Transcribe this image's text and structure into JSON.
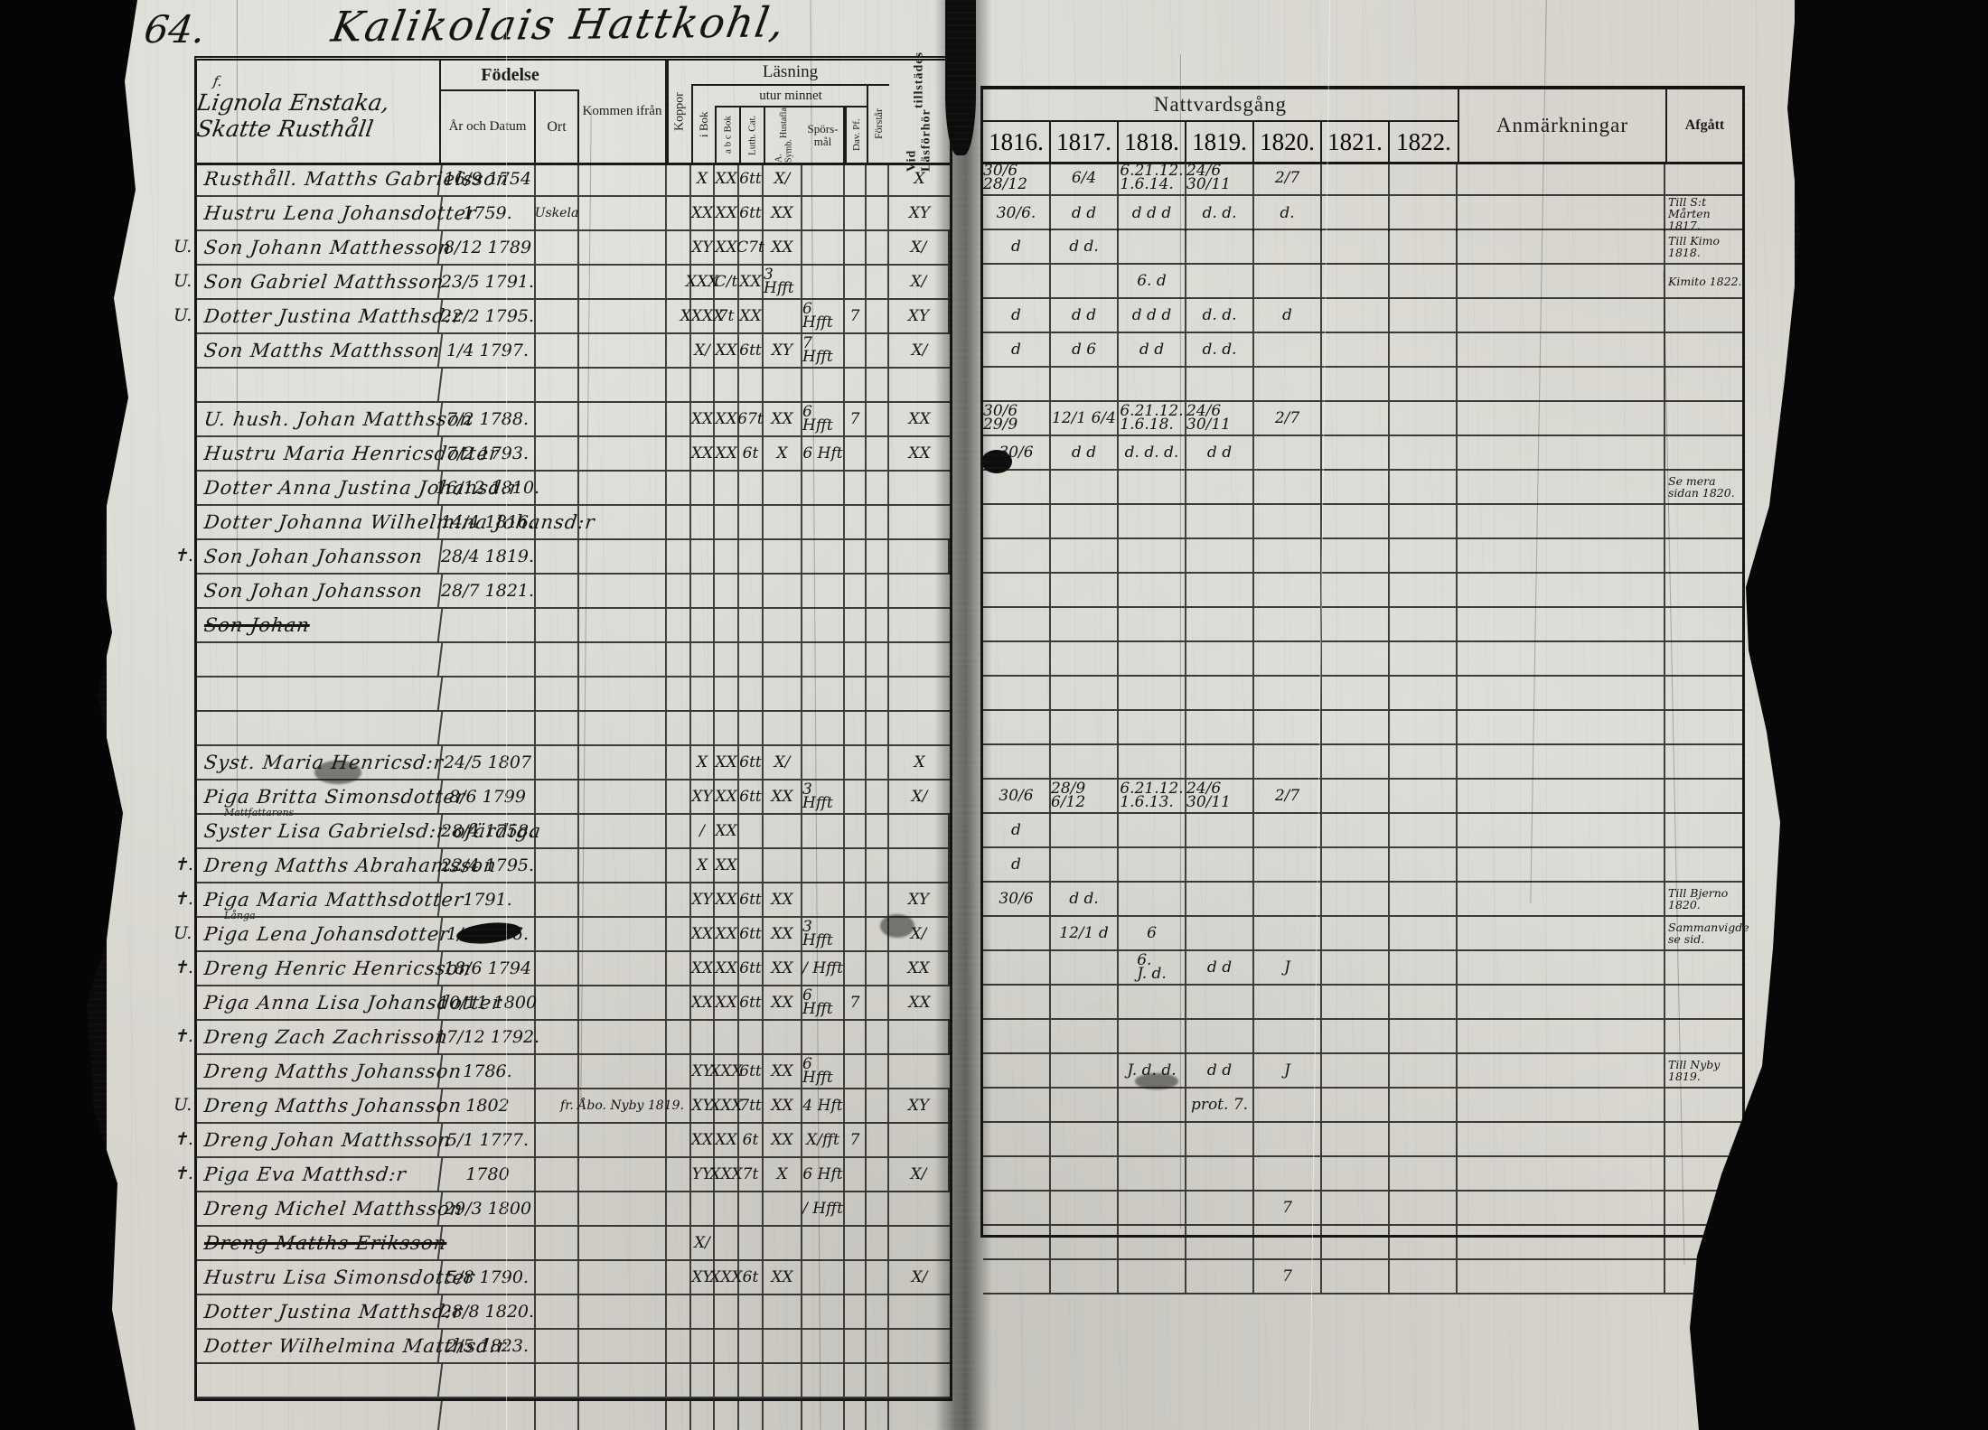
{
  "page": {
    "number": "64.",
    "title": "Kalikolais Hattkohl,"
  },
  "colors": {
    "paper": "#d6d4cd",
    "ink": "#1b1b1b"
  },
  "left_table": {
    "household": {
      "prefix": "f.",
      "line1": "Lignola Enstaka,",
      "line2": "Skatte Rusthåll"
    },
    "headers": {
      "fodelse": "Födelse",
      "ar_och_datum": "År och Datum",
      "ort": "Ort",
      "kommen": "Kommen ifrån",
      "koppor": "Koppor",
      "lasning": "Läsning",
      "utur_minnet": "utur minnet",
      "i_bok": "i Bok",
      "abc_bok": "a b c Bok",
      "luth_cat": "Luth. Cat.",
      "symb1": "A. Symb.",
      "symb2": "Hustafla",
      "spors1": "Spörs-",
      "spors2": "mål",
      "dav": "Dav. Pf.",
      "forstar": "Förstår",
      "vid1": "Vid Läsförhör",
      "vid2": "tillstädes"
    },
    "columns": [
      "name",
      "date",
      "ort",
      "kommen",
      "koppor",
      "ibok",
      "abc",
      "luth",
      "symb",
      "spors",
      "dav",
      "forstar",
      "vid"
    ],
    "rows": [
      {
        "name": "Rusthåll. Matths Gabrielsson",
        "date": "16/9 1754",
        "ibok": "X",
        "abc": "XX",
        "luth": "6tt",
        "symb": "X/",
        "vid": "X"
      },
      {
        "name": "Hustru Lena Johansdotter",
        "date": "1759.",
        "ort": "Uskela",
        "ibok": "XX",
        "abc": "XX",
        "luth": "6tt",
        "symb": "XX",
        "vid": "XY"
      },
      {
        "margin": "U.",
        "name": "Son Johann Matthesson",
        "date": "8/12 1789",
        "ibok": "XY",
        "abc": "XX",
        "luth": "C7t",
        "symb": "XX",
        "vid": "X/"
      },
      {
        "margin": "U.",
        "name": "Son Gabriel Matthsson",
        "date": "23/5 1791.",
        "ibok": "XXX",
        "abc": "C/t",
        "luth": "XX",
        "symb": "3 Hfft",
        "vid": "X/"
      },
      {
        "margin": "U.",
        "name": "Dotter Justina Matthsd:r",
        "date": "22/2 1795.",
        "ibok": "XXXX",
        "abc": "7t",
        "luth": "XX",
        "spors": "6 Hfft",
        "dav": "7",
        "vid": "XY"
      },
      {
        "name": "Son Matths Matthsson",
        "date": "1/4 1797.",
        "ibok": "X/",
        "abc": "XX",
        "luth": "6tt",
        "symb": "XY",
        "spors": "7 Hfft",
        "vid": "X/"
      },
      {},
      {
        "name": "U. hush. Johan Matthsson",
        "date": "7/2 1788.",
        "ibok": "XX",
        "abc": "XX",
        "luth": "67t",
        "symb": "XX",
        "spors": "6 Hfft",
        "dav": "7",
        "vid": "XX"
      },
      {
        "name": "Hustru Maria Henricsdotter",
        "date": "7/2 1793.",
        "ibok": "XX",
        "abc": "XX",
        "luth": "6t",
        "symb": "X",
        "spors": "6 Hft",
        "vid": "XX"
      },
      {
        "name": "Dotter Anna Justina Johansd:r",
        "date": "16/12 1810."
      },
      {
        "name": "Dotter Johanna Wilhelmina Johansd:r",
        "date": "14/4 1816."
      },
      {
        "margin": "✝.",
        "name": "Son Johan Johansson",
        "date": "28/4 1819."
      },
      {
        "name": "Son Johan Johansson",
        "date": "28/7 1821."
      },
      {
        "name": "Son Johan",
        "struck": true
      },
      {},
      {},
      {},
      {
        "name": "Syst. Maria Henricsd:r",
        "date": "24/5 1807",
        "ibok": "X",
        "abc": "XX",
        "luth": "6tt",
        "symb": "X/",
        "vid": "X"
      },
      {
        "name": "Piga Britta Simonsdotter",
        "date": "8/6 1799",
        "ibok": "XY",
        "abc": "XX",
        "luth": "6tt",
        "symb": "XX",
        "spors": "3 Hfft",
        "vid": "X/"
      },
      {
        "name": "Syster Lisa Gabrielsd:r ofärdiga",
        "date": "28/4 1758.",
        "note": "Mattfattarens",
        "ibok": "/",
        "abc": "XX"
      },
      {
        "margin": "✝.",
        "name": "Dreng Matths Abrahamsson",
        "date": "22/4 1795.",
        "ibok": "X",
        "abc": "XX"
      },
      {
        "margin": "✝.",
        "name": "Piga Maria Matthsdotter",
        "date": "1791.",
        "ibok": "XY",
        "abc": "XX",
        "luth": "6tt",
        "symb": "XX",
        "vid": "XY"
      },
      {
        "margin": "U.",
        "name": "Piga Lena Johansdotter",
        "date": "1/1 1796.",
        "note": "Långa",
        "ibok": "XX",
        "abc": "XX",
        "luth": "6tt",
        "symb": "XX",
        "spors": "3 Hfft",
        "vid": "X/"
      },
      {
        "margin": "✝.",
        "name": "Dreng Henric Henricsson",
        "date": "18/6 1794",
        "ibok": "XX",
        "abc": "XX",
        "luth": "6tt",
        "symb": "XX",
        "spors": "/ Hfft",
        "vid": "XX"
      },
      {
        "name": "Piga Anna Lisa Johansdotter",
        "date": "10/11 1800",
        "ibok": "XX",
        "abc": "XX",
        "luth": "6tt",
        "symb": "XX",
        "spors": "6 Hfft",
        "dav": "7",
        "vid": "XX"
      },
      {
        "margin": "✝.",
        "name": "Dreng Zach Zachrisson",
        "date": "17/12 1792."
      },
      {
        "name": "Dreng Matths Johansson",
        "date": "1786.",
        "ibok": "XY",
        "abc": "XXX",
        "luth": "6tt",
        "symb": "XX",
        "spors": "6 Hfft"
      },
      {
        "margin": "U.",
        "name": "Dreng Matths Johansson",
        "date": "1802",
        "kommen": "fr. Åbo. Nyby 1819.",
        "ibok": "XY",
        "abc": "XXX",
        "luth": "7tt",
        "symb": "XX",
        "spors": "4 Hft",
        "vid": "XY"
      },
      {
        "margin": "✝.",
        "name": "Dreng Johan Matthsson",
        "date": "5/1 1777.",
        "ibok": "XX",
        "abc": "XX",
        "luth": "6t",
        "symb": "XX",
        "spors": "X/fft",
        "dav": "7"
      },
      {
        "margin": "✝.",
        "name": "Piga Eva Matthsd:r",
        "date": "1780",
        "ibok": "YY",
        "abc": "XXX",
        "luth": "7t",
        "symb": "X",
        "spors": "6 Hft",
        "vid": "X/"
      },
      {
        "name": "Dreng Michel Matthsson",
        "date": "29/3 1800",
        "spors": "/ Hfft"
      },
      {
        "name": "Dreng Matths Eriksson",
        "struck": true,
        "ibok": "X/"
      },
      {
        "name": "Hustru Lisa Simonsdotter",
        "date": "5/8 1790.",
        "ibok": "XY",
        "abc": "XXX",
        "luth": "6t",
        "symb": "XX",
        "vid": "X/"
      },
      {
        "name": "Dotter Justina Matthsd:r",
        "date": "28/8 1820."
      },
      {
        "name": "Dotter Wilhelmina Matthsd:r",
        "date": "2/5 1823."
      },
      {},
      {},
      {}
    ]
  },
  "right_table": {
    "headers": {
      "nattvardsgang": "Nattvardsgång",
      "anmarkningar": "Anmärkningar",
      "afgatt": "Afgått"
    },
    "years": [
      "1816.",
      "1817.",
      "1818.",
      "1819.",
      "1820.",
      "1821.",
      "1822."
    ],
    "columns": [
      "y1816",
      "y1817",
      "y1818",
      "y1819",
      "y1820",
      "y1821",
      "y1822",
      "anm",
      "afgatt"
    ],
    "rows": [
      {
        "y1816": "30/6 28/12",
        "y1817": "6/4",
        "y1818": "6.21.12.\n1.6.14.",
        "y1819": "24/6 30/11",
        "y1820": "2/7"
      },
      {
        "y1816": "30/6.",
        "y1817": "d  d",
        "y1818": "d d d",
        "y1819": "d. d.",
        "y1820": "d.",
        "afgatt": "Till S:t Mårten 1817."
      },
      {
        "y1816": "d",
        "y1817": "d  d.",
        "afgatt": "Till Kimo 1818."
      },
      {
        "y1818": "6. d",
        "afgatt": "Kimito 1822."
      },
      {
        "y1816": "d",
        "y1817": "d  d",
        "y1818": "d d d",
        "y1819": "d. d.",
        "y1820": "d"
      },
      {
        "y1816": "d",
        "y1817": "d  6",
        "y1818": "d d",
        "y1819": "d. d."
      },
      {},
      {
        "y1816": "30/6 29/9",
        "y1817": "12/1 6/4",
        "y1818": "6.21.12.\n1.6.18.",
        "y1819": "24/6 30/11",
        "y1820": "2/7"
      },
      {
        "y1816": "30/6",
        "y1817": "d  d",
        "y1818": "d. d. d.",
        "y1819": "d  d"
      },
      {
        "afgatt": "Se mera sidan 1820."
      },
      {},
      {},
      {},
      {},
      {},
      {},
      {},
      {},
      {
        "y1816": "30/6",
        "y1817": "28/9 6/12",
        "y1818": "6.21.12.\n1.6.13.",
        "y1819": "24/6 30/11",
        "y1820": "2/7"
      },
      {
        "y1816": "d"
      },
      {
        "y1816": "d"
      },
      {
        "y1816": "30/6",
        "y1817": "d  d.",
        "afgatt": "Till Bjerno 1820."
      },
      {
        "y1817": "12/1  d",
        "y1818": "6",
        "afgatt": "Sammanvigde se sid."
      },
      {
        "y1818": "6.\nJ. d.",
        "y1819": "d  d",
        "y1820": "J"
      },
      {},
      {},
      {
        "y1818": "J. d. d.",
        "y1819": "d  d",
        "y1820": "J",
        "afgatt": "Till Nyby 1819."
      },
      {
        "y1819": "prot. 7."
      },
      {},
      {},
      {
        "y1820": "7"
      },
      {},
      {
        "y1820": "7"
      }
    ]
  }
}
